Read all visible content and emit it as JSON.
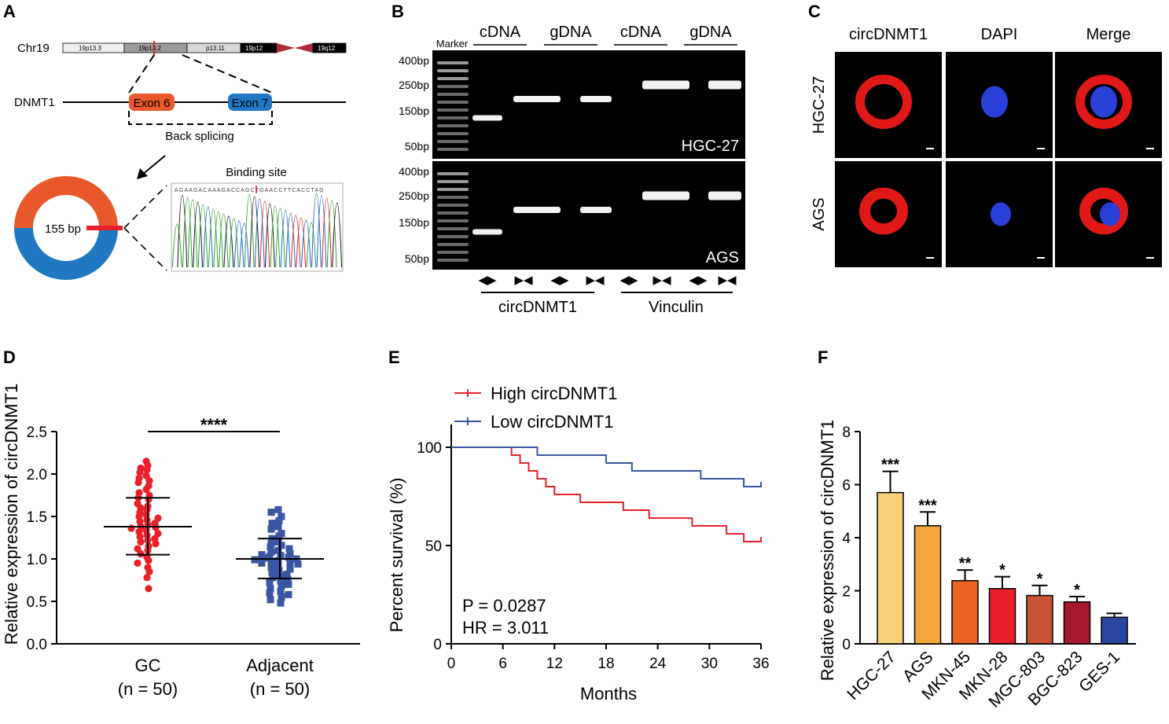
{
  "panel_letters": [
    "A",
    "B",
    "C",
    "D",
    "E",
    "F"
  ],
  "panelA": {
    "chrom_label": "Chr19",
    "bands": [
      "19p13.3",
      "19p13.2",
      "p13.11",
      "19p12",
      "19q12"
    ],
    "gene_label": "DNMT1",
    "exon6": "Exon 6",
    "exon7": "Exon 7",
    "back_splicing": "Back splicing",
    "circ_size": "155 bp",
    "binding_site": "Binding site",
    "sequence": "AGAAGACAAAGACCAGCTGAACCTTCACCTAG",
    "colors": {
      "exon6": "#e8582a",
      "exon7": "#1f78c1",
      "junction": "#e8202a"
    }
  },
  "panelB": {
    "marker_label": "Marker",
    "top_headers": [
      "cDNA",
      "gDNA",
      "cDNA",
      "gDNA"
    ],
    "ladder_labels_top": [
      "400bp",
      "250bp",
      "150bp",
      "50bp"
    ],
    "ladder_labels_bottom": [
      "400bp",
      "250bp",
      "150bp",
      "50bp"
    ],
    "gel_top_label": "HGC-27",
    "gel_bottom_label": "AGS",
    "primer_symbols": [
      "◀▶",
      "▶◀",
      "◀▶",
      "▶◀",
      "◀▶",
      "▶◀",
      "◀▶",
      "▶◀"
    ],
    "gene_labels": [
      "circDNMT1",
      "Vinculin"
    ]
  },
  "panelC": {
    "column_headers": [
      "circDNMT1",
      "DAPI",
      "Merge"
    ],
    "row_labels": [
      "HGC-27",
      "AGS"
    ]
  },
  "chart_data": [
    {
      "panel": "D",
      "type": "scatter",
      "ylabel": "Relative expression of circDNMT1",
      "ylim": [
        0,
        2.5
      ],
      "yticks": [
        "0.0",
        "0.5",
        "1.0",
        "1.5",
        "2.0",
        "2.5"
      ],
      "categories": [
        "GC",
        "Adjacent"
      ],
      "category_n": [
        "(n = 50)",
        "(n = 50)"
      ],
      "significance": "****",
      "series": [
        {
          "name": "GC",
          "color": "#e8202a",
          "mean": 1.38,
          "sd_low": 1.05,
          "sd_high": 1.72,
          "values": [
            2.15,
            2.1,
            2.07,
            2.05,
            2.02,
            1.98,
            1.95,
            1.92,
            1.9,
            1.86,
            1.82,
            1.78,
            1.75,
            1.72,
            1.7,
            1.65,
            1.62,
            1.6,
            1.58,
            1.55,
            1.52,
            1.5,
            1.48,
            1.46,
            1.44,
            1.42,
            1.4,
            1.38,
            1.37,
            1.36,
            1.34,
            1.32,
            1.3,
            1.28,
            1.26,
            1.24,
            1.22,
            1.2,
            1.18,
            1.15,
            1.12,
            1.1,
            1.06,
            1.02,
            0.98,
            0.95,
            0.9,
            0.85,
            0.78,
            0.65
          ]
        },
        {
          "name": "Adjacent",
          "color": "#3a55a4",
          "mean": 1.0,
          "sd_low": 0.77,
          "sd_high": 1.24,
          "values": [
            1.58,
            1.55,
            1.5,
            1.45,
            1.42,
            1.38,
            1.35,
            1.3,
            1.27,
            1.24,
            1.2,
            1.18,
            1.16,
            1.14,
            1.12,
            1.1,
            1.08,
            1.06,
            1.05,
            1.04,
            1.03,
            1.02,
            1.01,
            1.0,
            0.99,
            0.98,
            0.97,
            0.96,
            0.95,
            0.94,
            0.92,
            0.9,
            0.88,
            0.86,
            0.84,
            0.82,
            0.8,
            0.78,
            0.76,
            0.74,
            0.72,
            0.7,
            0.68,
            0.65,
            0.62,
            0.6,
            0.58,
            0.55,
            0.52,
            0.48
          ]
        }
      ]
    },
    {
      "panel": "E",
      "type": "line",
      "xlabel": "Months",
      "ylabel": "Percent survival (%)",
      "xlim": [
        0,
        36
      ],
      "ylim": [
        0,
        110
      ],
      "xticks": [
        0,
        6,
        12,
        18,
        24,
        30,
        36
      ],
      "yticks": [
        0,
        50,
        100
      ],
      "p_text": "P = 0.0287",
      "hr_text": "HR = 3.011",
      "series": [
        {
          "name": "High circDNMT1",
          "color": "#e8202a",
          "steps": [
            [
              0,
              100
            ],
            [
              7,
              100
            ],
            [
              7,
              96
            ],
            [
              8,
              96
            ],
            [
              8,
              92
            ],
            [
              9,
              92
            ],
            [
              9,
              88
            ],
            [
              10,
              88
            ],
            [
              10,
              84
            ],
            [
              11,
              84
            ],
            [
              11,
              80
            ],
            [
              12,
              80
            ],
            [
              12,
              76
            ],
            [
              15,
              76
            ],
            [
              15,
              72
            ],
            [
              20,
              72
            ],
            [
              20,
              68
            ],
            [
              23,
              68
            ],
            [
              23,
              64
            ],
            [
              28,
              64
            ],
            [
              28,
              60
            ],
            [
              32,
              60
            ],
            [
              32,
              56
            ],
            [
              34,
              56
            ],
            [
              34,
              52
            ],
            [
              36,
              52
            ]
          ]
        },
        {
          "name": "Low circDNMT1",
          "color": "#3a55a4",
          "steps": [
            [
              0,
              100
            ],
            [
              10,
              100
            ],
            [
              10,
              96
            ],
            [
              18,
              96
            ],
            [
              18,
              92
            ],
            [
              21,
              92
            ],
            [
              21,
              88
            ],
            [
              29,
              88
            ],
            [
              29,
              84
            ],
            [
              34,
              84
            ],
            [
              34,
              80
            ],
            [
              36,
              80
            ]
          ]
        }
      ]
    },
    {
      "panel": "F",
      "type": "bar",
      "ylabel": "Relative expression of circDNMT1",
      "ylim": [
        0,
        8
      ],
      "yticks": [
        0,
        2,
        4,
        6,
        8
      ],
      "categories": [
        "HGC-27",
        "AGS",
        "MKN-45",
        "MKN-28",
        "MGC-803",
        "BGC-823",
        "GES-1"
      ],
      "values": [
        5.7,
        4.45,
        2.38,
        2.08,
        1.82,
        1.58,
        1.0
      ],
      "errors": [
        0.8,
        0.52,
        0.4,
        0.45,
        0.38,
        0.2,
        0.15
      ],
      "significance": [
        "***",
        "***",
        "**",
        "*",
        "*",
        "*",
        ""
      ],
      "colors": [
        "#f7d27a",
        "#f3a73b",
        "#ec6424",
        "#e8202a",
        "#c95435",
        "#a4192b",
        "#2b46a0"
      ]
    }
  ]
}
